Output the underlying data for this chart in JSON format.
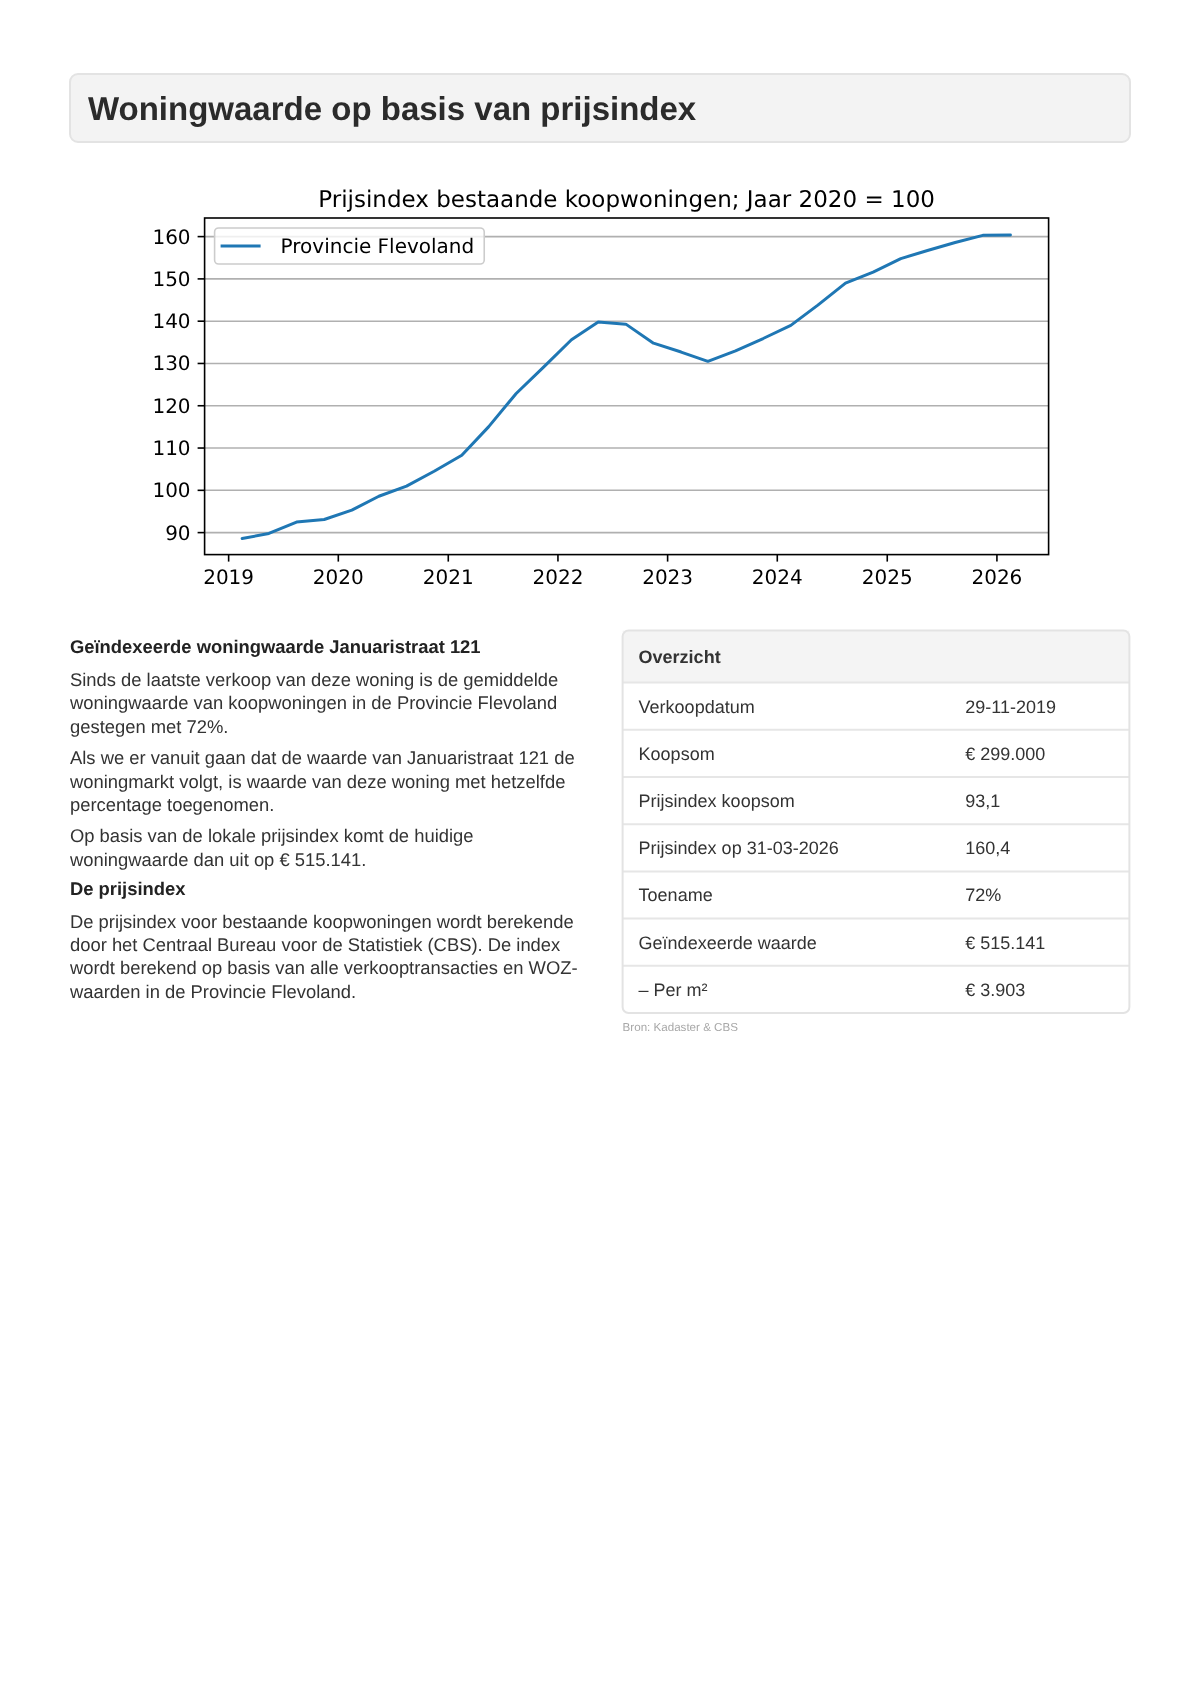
{
  "chart_data": [
    {
      "type": "other",
      "title": "Woningwaarde op basis van prijsindex"
    },
    {
      "type": "line",
      "title": "Prijsindex bestaande koopwoningen; Jaar 2020 = 100",
      "x": [
        "2019-02-15",
        "2019-05-15",
        "2019-08-15",
        "2019-11-15",
        "2020-02-15",
        "2020-05-15",
        "2020-08-15",
        "2020-11-15",
        "2021-02-15",
        "2021-05-15",
        "2021-08-15",
        "2021-11-15",
        "2022-02-15",
        "2022-05-15",
        "2022-08-15",
        "2022-11-15",
        "2023-02-15",
        "2023-05-15",
        "2023-08-15",
        "2023-11-15",
        "2024-02-15",
        "2024-05-15",
        "2024-08-15",
        "2024-11-15",
        "2025-02-15",
        "2025-05-15",
        "2025-08-15",
        "2025-11-15",
        "2026-02-15"
      ],
      "series": [
        {
          "name": "Provincie Flevoland",
          "color": "#1f77b4",
          "values": [
            88.6,
            89.8,
            92.5,
            93.1,
            95.3,
            98.6,
            101.0,
            104.5,
            108.3,
            115.0,
            122.9,
            129.2,
            135.6,
            139.8,
            139.3,
            134.8,
            132.7,
            130.5,
            133.0,
            135.9,
            139.0,
            143.8,
            149.0,
            151.6,
            154.8,
            156.7,
            158.6,
            160.3,
            160.4
          ]
        }
      ],
      "xlim": [
        "2018-10-13",
        "2026-06-22"
      ],
      "xticks": [
        "2019",
        "2020",
        "2021",
        "2022",
        "2023",
        "2024",
        "2025",
        "2026"
      ],
      "ylim": [
        84.8,
        164.4
      ],
      "yticks": [
        90,
        100,
        110,
        120,
        130,
        140,
        150,
        160
      ],
      "grid": "y",
      "legend": "top left"
    },
    {
      "type": "other",
      "title": "Geïndexeerde woningwaarde Januaristraat 121",
      "annotations": [
        "Sinds de laatste verkoop van deze woning is de gemiddelde woningwaarde van koopwoningen in de Provincie Flevoland gestegen met 72%.",
        "Als we er vanuit gaan dat de waarde van Januaristraat 121 de woningmarkt volgt, is waarde van deze woning met hetzelfde percentage toegenomen.",
        "Op basis van de lokale prijsindex komt de huidige woningwaarde dan uit op € 515.141."
      ]
    },
    {
      "type": "other",
      "title": "De prijsindex",
      "annotations": [
        "De prijsindex voor bestaande koopwoningen wordt berekende door het Centraal Bureau voor de Statistiek (CBS). De index wordt berekend op basis van alle verkooptransacties en WOZ-waarden in de Provincie Flevoland."
      ]
    },
    {
      "type": "other",
      "title": "Overzicht",
      "categories": [
        "Verkoopdatum",
        "Koopsom",
        "Prijsindex koopsom",
        "Prijsindex op 31-03-2026",
        "Toename",
        "Geïndexeerde waarde",
        "– Per m²"
      ],
      "value_labels": [
        "29-11-2019",
        "€ 299.000",
        "93,1",
        "160,4",
        "72%",
        "€ 515.141",
        "€ 3.903"
      ],
      "annotations": [
        "Bron: Kadaster & CBS"
      ]
    }
  ]
}
